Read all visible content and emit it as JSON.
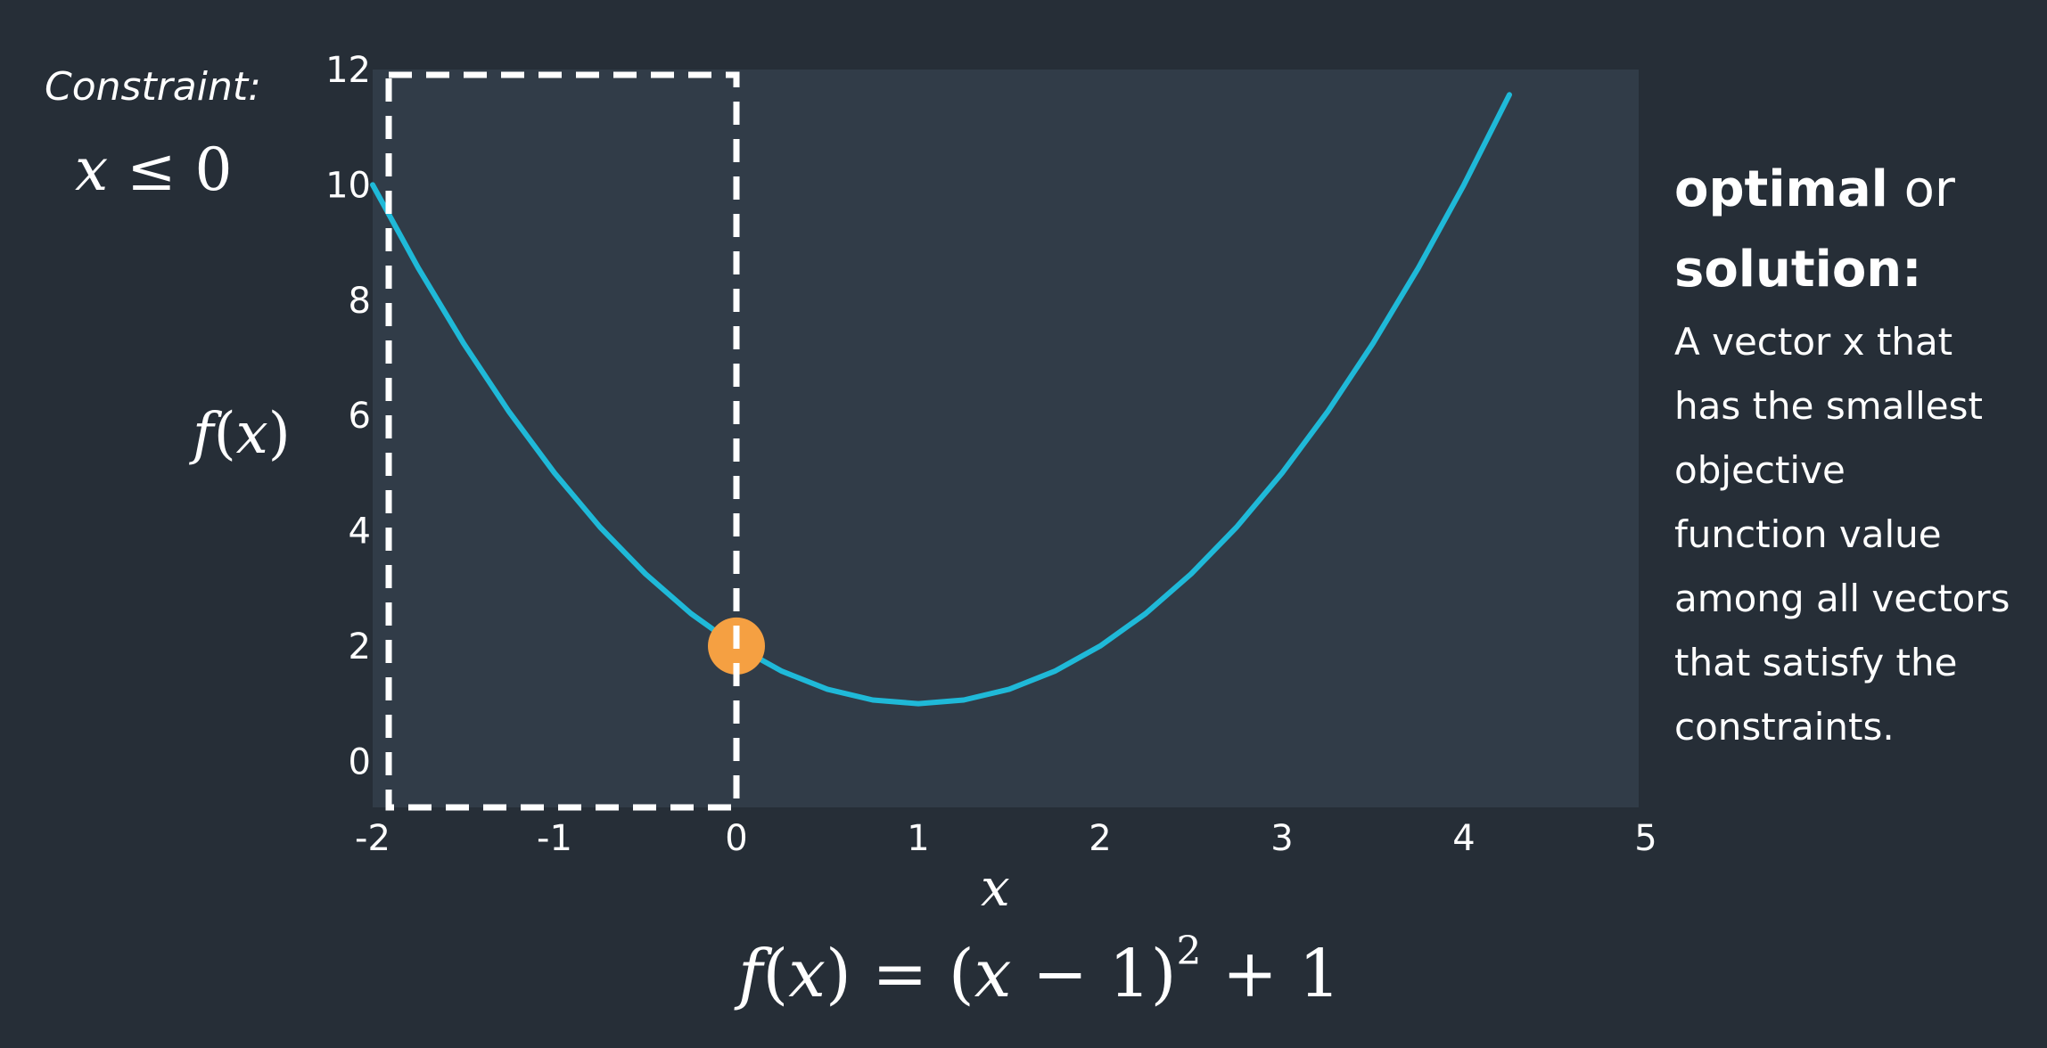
{
  "constraint": {
    "label": "Constraint:",
    "var": "x",
    "rest": " ≤ 0"
  },
  "axis_labels": {
    "y_var": "f",
    "y_rest_open": "(",
    "y_inner": "x",
    "y_rest_close": ")",
    "x_var": "x"
  },
  "formula": {
    "f": "f",
    "open": "(",
    "x1": "x",
    "mid": ") = (",
    "x2": "x",
    "minus": " − 1)",
    "exp": "2",
    "tail": " + 1"
  },
  "side": {
    "heading_bold_1": "optimal",
    "heading_normal": " or",
    "heading_bold_2": "solution:",
    "body_lines": [
      "A vector x that",
      "has the smallest",
      "objective",
      "function value",
      "among all vectors",
      "that satisfy the",
      "constraints."
    ]
  },
  "colors": {
    "background": "#262e37",
    "plot_area": "#313c48",
    "curve": "#1fb9d8",
    "optimum_marker": "#f5a042",
    "constraint_box": "#ffffff"
  },
  "chart_data": {
    "type": "line",
    "series": [
      {
        "x": [
          -2,
          -1.75,
          -1.5,
          -1.25,
          -1,
          -0.75,
          -0.5,
          -0.25,
          0,
          0.25,
          0.5,
          0.75,
          1,
          1.25,
          1.5,
          1.75,
          2,
          2.25,
          2.5,
          2.75,
          3,
          3.25,
          3.5,
          3.75,
          4,
          4.25
        ],
        "y": [
          10,
          8.5625,
          7.25,
          6.0625,
          5,
          4.0625,
          3.25,
          2.5625,
          2,
          1.5625,
          1.25,
          1.0625,
          1,
          1.0625,
          1.25,
          1.5625,
          2,
          2.5625,
          3.25,
          4.0625,
          5,
          6.0625,
          7.25,
          8.5625,
          10,
          11.5625
        ]
      }
    ],
    "x_ticks": [
      "-2",
      "-1",
      "0",
      "1",
      "2",
      "3",
      "4",
      "5"
    ],
    "y_ticks": [
      "0",
      "2",
      "4",
      "6",
      "8",
      "10",
      "12"
    ],
    "xlim": [
      -2,
      5
    ],
    "ylim": [
      -0.8,
      12
    ],
    "feasible_region": {
      "x_min": -2,
      "x_max": 0
    },
    "optimum_point": {
      "x": 0,
      "y": 2
    },
    "grid": false
  }
}
